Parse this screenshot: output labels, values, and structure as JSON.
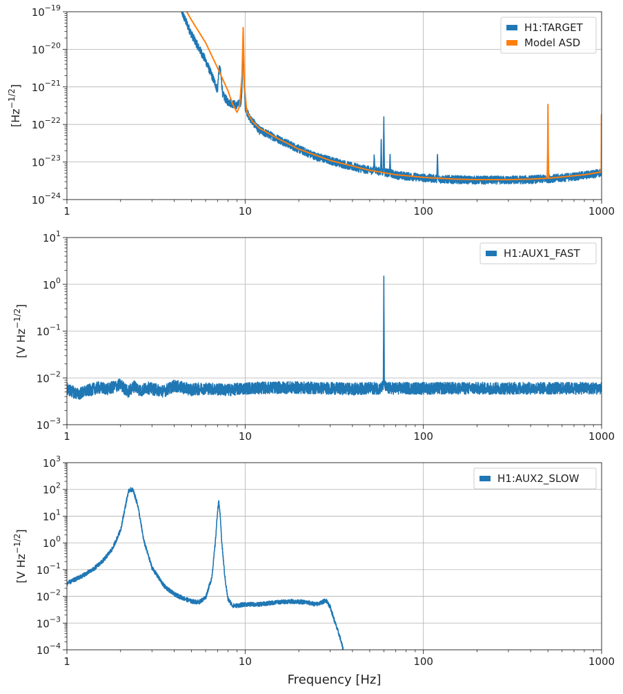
{
  "colors": {
    "blue": "#1f77b4",
    "orange": "#ff7f0e",
    "grid": "#b0b0b0",
    "axis": "#222222"
  },
  "chart_data": [
    {
      "type": "line",
      "xscale": "log",
      "yscale": "log",
      "xlim": [
        1,
        1000
      ],
      "ylim": [
        1e-24,
        1e-19
      ],
      "xticks": [
        "1",
        "10",
        "100",
        "1000"
      ],
      "yticks": [
        {
          "base": "10",
          "exp": "−24"
        },
        {
          "base": "10",
          "exp": "−23"
        },
        {
          "base": "10",
          "exp": "−22"
        },
        {
          "base": "10",
          "exp": "−21"
        },
        {
          "base": "10",
          "exp": "−20"
        },
        {
          "base": "10",
          "exp": "−19"
        }
      ],
      "ylabel": "[Hz^{-1/2}]",
      "xlabel": "",
      "grid": true,
      "legend_placement": "top-right",
      "series": [
        {
          "name": "H1:TARGET",
          "color": "#1f77b4",
          "noise": 0.11,
          "x": [
            4.4,
            5,
            6,
            6.8,
            7.0,
            7.1,
            7.2,
            7.3,
            7.5,
            8,
            9,
            9.5,
            9.65,
            9.75,
            9.85,
            10,
            10.5,
            12,
            15,
            20,
            25,
            30,
            40,
            50,
            52.5,
            53,
            53.5,
            55,
            57.5,
            58,
            58.5,
            59.5,
            60,
            60.5,
            62,
            64.5,
            65,
            65.5,
            70,
            80,
            100,
            117,
            119,
            120,
            121,
            123,
            150,
            200,
            300,
            400,
            500,
            600,
            700,
            800,
            900,
            1000
          ],
          "y": [
            1e-19,
            2.5e-20,
            5e-21,
            1.2e-21,
            8e-22,
            2.5e-21,
            3.2e-21,
            2.2e-21,
            6e-22,
            4e-22,
            3.2e-22,
            4e-22,
            1.5e-21,
            2.8e-20,
            1.5e-21,
            3e-22,
            1.6e-22,
            7e-23,
            4.3e-23,
            2.2e-23,
            1.4e-23,
            1.1e-23,
            7.5e-24,
            6e-24,
            6e-24,
            1.4e-23,
            6e-24,
            5.8e-24,
            5.6e-24,
            4e-23,
            5.5e-24,
            5.4e-24,
            1.6e-22,
            5.4e-24,
            5.2e-24,
            5e-24,
            1.6e-23,
            5e-24,
            4.5e-24,
            4.2e-24,
            3.8e-24,
            3.6e-24,
            3.6e-24,
            1.6e-23,
            3.6e-24,
            3.5e-24,
            3.4e-24,
            3.3e-24,
            3.3e-24,
            3.4e-24,
            3.6e-24,
            3.8e-24,
            4.1e-24,
            4.4e-24,
            4.8e-24,
            5.2e-24
          ]
        },
        {
          "name": "Model ASD",
          "color": "#ff7f0e",
          "noise": 0,
          "x": [
            4.7,
            5,
            6,
            7,
            8,
            8.5,
            9.0,
            9.3,
            9.6,
            9.75,
            9.9,
            10.2,
            11,
            12,
            15,
            20,
            30,
            50,
            70,
            100,
            150,
            200,
            300,
            400,
            495,
            498,
            500,
            502,
            505,
            600,
            800,
            995,
            998,
            1000
          ],
          "y": [
            1e-19,
            6e-20,
            1.5e-20,
            3.2e-21,
            8e-22,
            3.5e-22,
            2.1e-22,
            3e-22,
            2e-21,
            3.8e-20,
            1.2e-21,
            2.2e-22,
            1.2e-22,
            8e-23,
            4.4e-23,
            2.2e-23,
            1.1e-23,
            6e-24,
            4.6e-24,
            3.9e-24,
            3.5e-24,
            3.4e-24,
            3.4e-24,
            3.5e-24,
            3.7e-24,
            2e-23,
            3.4e-22,
            2e-23,
            3.7e-24,
            4e-24,
            4.6e-24,
            5.4e-24,
            1.8e-22,
            1.8e-22
          ]
        }
      ]
    },
    {
      "type": "line",
      "xscale": "log",
      "yscale": "log",
      "xlim": [
        1,
        1000
      ],
      "ylim": [
        0.001,
        10
      ],
      "xticks": [
        "1",
        "10",
        "100",
        "1000"
      ],
      "yticks": [
        {
          "base": "10",
          "exp": "−3"
        },
        {
          "base": "10",
          "exp": "−2"
        },
        {
          "base": "10",
          "exp": "−1"
        },
        {
          "base": "10",
          "exp": "0"
        },
        {
          "base": "10",
          "exp": "1"
        }
      ],
      "ylabel": "[V Hz^{-1/2}]",
      "xlabel": "",
      "grid": true,
      "legend_placement": "top-right",
      "series": [
        {
          "name": "H1:AUX1_FAST",
          "color": "#1f77b4",
          "noise": 0.13,
          "x": [
            1,
            1.15,
            1.3,
            1.5,
            1.7,
            2.0,
            2.2,
            2.4,
            2.6,
            2.8,
            3,
            3.5,
            4,
            5,
            6,
            8,
            10,
            15,
            20,
            30,
            40,
            50,
            58,
            59.6,
            60,
            60.4,
            62,
            80,
            100,
            200,
            300,
            500,
            700,
            1000
          ],
          "y": [
            0.0058,
            0.0045,
            0.0053,
            0.0062,
            0.0058,
            0.0072,
            0.005,
            0.0068,
            0.0052,
            0.0062,
            0.0058,
            0.0052,
            0.0068,
            0.0056,
            0.006,
            0.0055,
            0.006,
            0.0062,
            0.0062,
            0.006,
            0.0058,
            0.006,
            0.006,
            0.007,
            1.5,
            0.007,
            0.006,
            0.006,
            0.006,
            0.006,
            0.006,
            0.006,
            0.006,
            0.006
          ]
        }
      ]
    },
    {
      "type": "line",
      "xscale": "log",
      "yscale": "log",
      "xlim": [
        1,
        1000
      ],
      "ylim": [
        0.0001,
        1000
      ],
      "xticks": [
        "1",
        "10",
        "100",
        "1000"
      ],
      "yticks": [
        {
          "base": "10",
          "exp": "−4"
        },
        {
          "base": "10",
          "exp": "−3"
        },
        {
          "base": "10",
          "exp": "−2"
        },
        {
          "base": "10",
          "exp": "−1"
        },
        {
          "base": "10",
          "exp": "0"
        },
        {
          "base": "10",
          "exp": "1"
        },
        {
          "base": "10",
          "exp": "2"
        },
        {
          "base": "10",
          "exp": "3"
        }
      ],
      "ylabel": "[V Hz^{-1/2}]",
      "xlabel": "Frequency [Hz]",
      "grid": true,
      "legend_placement": "top-right",
      "series": [
        {
          "name": "H1:AUX2_SLOW",
          "color": "#1f77b4",
          "noise": 0.08,
          "x": [
            1,
            1.2,
            1.4,
            1.6,
            1.8,
            2.0,
            2.1,
            2.2,
            2.25,
            2.35,
            2.5,
            2.7,
            3.0,
            3.5,
            4.0,
            4.5,
            5.0,
            5.5,
            6.0,
            6.5,
            6.8,
            7.0,
            7.1,
            7.2,
            7.4,
            7.7,
            8.0,
            8.5,
            9,
            10,
            12,
            15,
            18,
            22,
            25,
            27,
            28.5,
            30,
            32,
            34,
            35.5
          ],
          "y": [
            0.03,
            0.055,
            0.1,
            0.22,
            0.6,
            3,
            15,
            70,
            100,
            95,
            25,
            1.2,
            0.12,
            0.025,
            0.012,
            0.0085,
            0.0065,
            0.006,
            0.009,
            0.05,
            1,
            15,
            35,
            18,
            1,
            0.05,
            0.008,
            0.0045,
            0.0045,
            0.005,
            0.005,
            0.006,
            0.0065,
            0.006,
            0.005,
            0.006,
            0.0072,
            0.004,
            0.001,
            0.0003,
            0.0001
          ]
        }
      ]
    }
  ]
}
